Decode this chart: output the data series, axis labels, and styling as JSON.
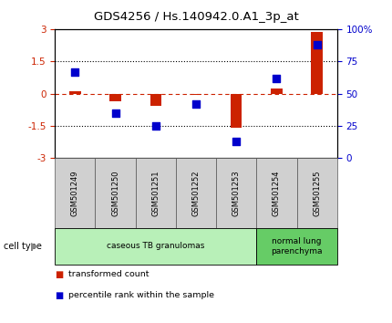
{
  "title": "GDS4256 / Hs.140942.0.A1_3p_at",
  "samples": [
    "GSM501249",
    "GSM501250",
    "GSM501251",
    "GSM501252",
    "GSM501253",
    "GSM501254",
    "GSM501255"
  ],
  "transformed_count": [
    0.1,
    -0.35,
    -0.55,
    -0.05,
    -1.6,
    0.25,
    2.85
  ],
  "percentile_rank": [
    67,
    35,
    25,
    42,
    13,
    62,
    88
  ],
  "ylim_left": [
    -3,
    3
  ],
  "ylim_right": [
    0,
    100
  ],
  "yticks_left": [
    -3,
    -1.5,
    0,
    1.5,
    3
  ],
  "yticks_right": [
    0,
    25,
    50,
    75,
    100
  ],
  "ytick_labels_right": [
    "0",
    "25",
    "50",
    "75",
    "100%"
  ],
  "bar_color": "#cc2200",
  "dot_color": "#0000cc",
  "cell_type_groups": [
    {
      "label": "caseous TB granulomas",
      "samples": [
        0,
        1,
        2,
        3,
        4
      ],
      "color": "#b8f0b8"
    },
    {
      "label": "normal lung\nparenchyma",
      "samples": [
        5,
        6
      ],
      "color": "#66cc66"
    }
  ],
  "cell_type_label": "cell type",
  "legend_red": "transformed count",
  "legend_blue": "percentile rank within the sample",
  "tick_label_color_left": "#cc2200",
  "tick_label_color_right": "#0000cc",
  "sample_box_color": "#d0d0d0",
  "sample_box_edge": "#555555"
}
